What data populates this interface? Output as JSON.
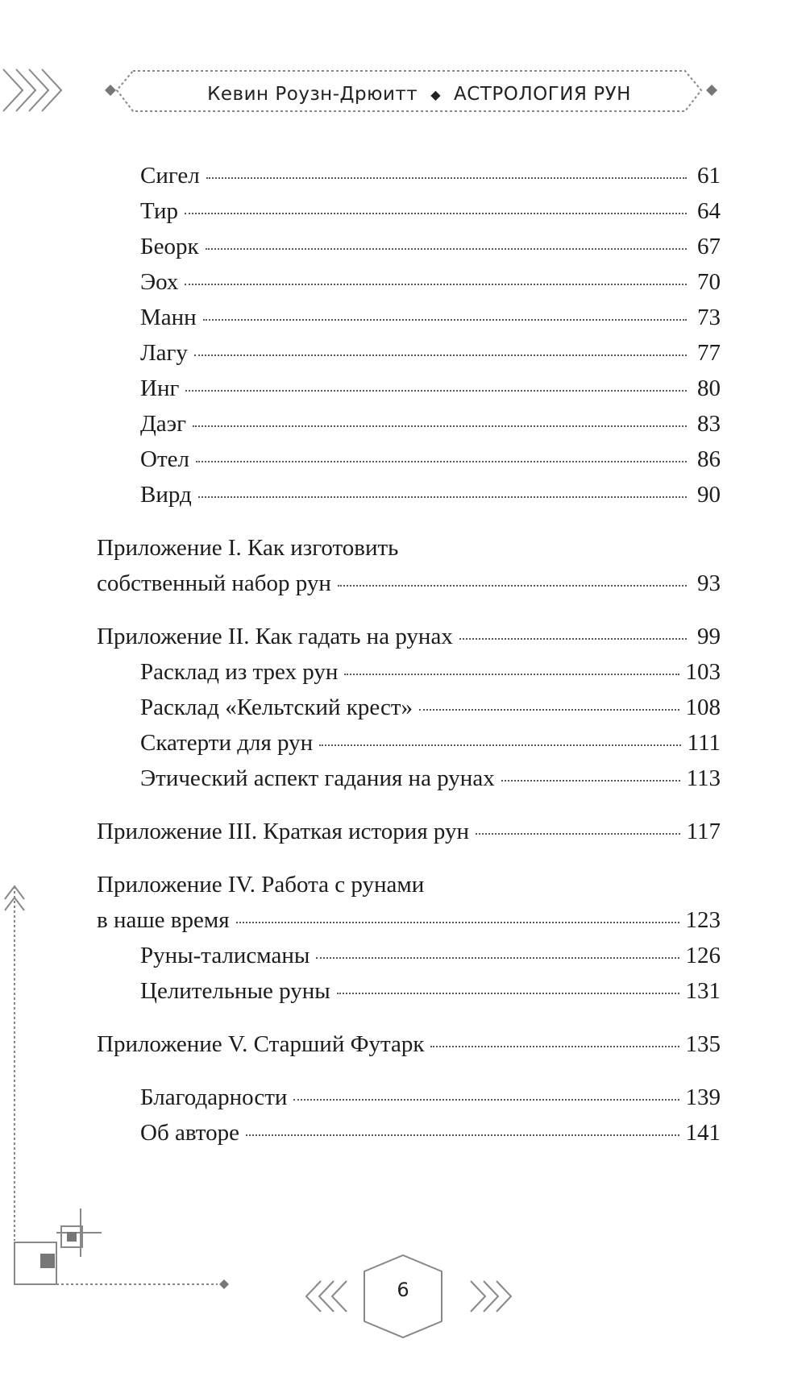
{
  "header": {
    "author": "Кевин Роузн-Дрюитт",
    "title": "АСТРОЛОГИЯ РУН"
  },
  "toc": {
    "runes": [
      {
        "label": "Сигел",
        "page": "61"
      },
      {
        "label": "Тир",
        "page": "64"
      },
      {
        "label": "Беорк",
        "page": "67"
      },
      {
        "label": "Эох",
        "page": "70"
      },
      {
        "label": "Манн",
        "page": "73"
      },
      {
        "label": "Лагу",
        "page": "77"
      },
      {
        "label": "Инг",
        "page": "80"
      },
      {
        "label": "Даэг",
        "page": "83"
      },
      {
        "label": "Отел",
        "page": "86"
      },
      {
        "label": "Вирд",
        "page": "90"
      }
    ],
    "appendix1": {
      "line1": "Приложение I. Как изготовить",
      "line2": "собственный набор рун",
      "page": "93"
    },
    "appendix2": {
      "label": "Приложение II. Как гадать на рунах",
      "page": "99"
    },
    "appendix2_subs": [
      {
        "label": "Расклад из трех рун",
        "page": "103"
      },
      {
        "label": "Расклад «Кельтский крест»",
        "page": "108"
      },
      {
        "label": "Скатерти для рун",
        "page": "111"
      },
      {
        "label": "Этический аспект гадания на рунах",
        "page": "113"
      }
    ],
    "appendix3": {
      "label": "Приложение III. Краткая история рун",
      "page": "117"
    },
    "appendix4": {
      "line1": "Приложение IV. Работа с рунами",
      "line2": "в наше время",
      "page": "123"
    },
    "appendix4_subs": [
      {
        "label": "Руны-талисманы",
        "page": "126"
      },
      {
        "label": "Целительные руны",
        "page": "131"
      }
    ],
    "appendix5": {
      "label": "Приложение V. Старший Футарк",
      "page": "135"
    },
    "end_items": [
      {
        "label": "Благодарности",
        "page": "139"
      },
      {
        "label": "Об авторе",
        "page": "141"
      }
    ]
  },
  "footer": {
    "page_number": "6"
  }
}
